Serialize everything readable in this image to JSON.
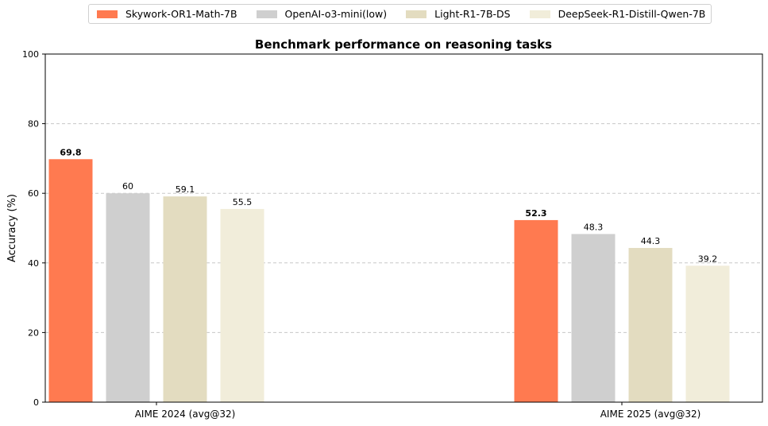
{
  "chart_data": {
    "type": "bar",
    "title": "Benchmark performance on reasoning tasks",
    "xlabel": "",
    "ylabel": "Accuracy (%)",
    "ylim": [
      0,
      100
    ],
    "yticks": [
      "0",
      "20",
      "40",
      "60",
      "80",
      "100"
    ],
    "grid": "horizontal dashed",
    "legend_position": "top",
    "categories": [
      "AIME 2024 (avg@32)",
      "AIME 2025 (avg@32)"
    ],
    "series": [
      {
        "name": "Skywork-OR1-Math-7B",
        "color": "#ff7a50",
        "values": [
          69.8,
          52.3
        ],
        "labels": [
          "69.8",
          "52.3"
        ],
        "bold_labels": true
      },
      {
        "name": "OpenAI-o3-mini(low)",
        "color": "#cfcfcf",
        "values": [
          60,
          48.3
        ],
        "labels": [
          "60",
          "48.3"
        ],
        "bold_labels": false
      },
      {
        "name": "Light-R1-7B-DS",
        "color": "#e3dcc0",
        "values": [
          59.1,
          44.3
        ],
        "labels": [
          "59.1",
          "44.3"
        ],
        "bold_labels": false
      },
      {
        "name": "DeepSeek-R1-Distill-Qwen-7B",
        "color": "#f1edda",
        "values": [
          55.5,
          39.2
        ],
        "labels": [
          "55.5",
          "39.2"
        ],
        "bold_labels": false
      }
    ]
  }
}
